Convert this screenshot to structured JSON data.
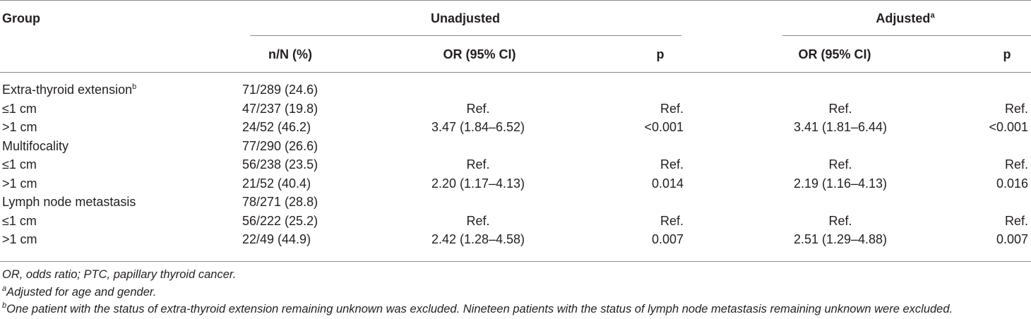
{
  "header": {
    "group": "Group",
    "unadjusted": "Unadjusted",
    "adjusted": "Adjusted",
    "adjusted_sup": "a",
    "n_pct": "n/N (%)",
    "or_ci_unadj": "OR (95% CI)",
    "p_unadj": "p",
    "or_ci_adj": "OR (95% CI)",
    "p_adj": "p"
  },
  "rows": [
    {
      "label": "Extra-thyroid extension",
      "sup": "b",
      "n": "71/289 (24.6)",
      "or1": "",
      "p1": "",
      "or2": "",
      "p2": ""
    },
    {
      "label": "≤1 cm",
      "sup": "",
      "n": "47/237 (19.8)",
      "or1": "Ref.",
      "p1": "Ref.",
      "or2": "Ref.",
      "p2": "Ref."
    },
    {
      "label": ">1 cm",
      "sup": "",
      "n": "24/52 (46.2)",
      "or1": "3.47 (1.84–6.52)",
      "p1": "<0.001",
      "or2": "3.41 (1.81–6.44)",
      "p2": "<0.001"
    },
    {
      "label": "Multifocality",
      "sup": "",
      "n": "77/290 (26.6)",
      "or1": "",
      "p1": "",
      "or2": "",
      "p2": ""
    },
    {
      "label": "≤1 cm",
      "sup": "",
      "n": "56/238 (23.5)",
      "or1": "Ref.",
      "p1": "Ref.",
      "or2": "Ref.",
      "p2": "Ref."
    },
    {
      "label": ">1 cm",
      "sup": "",
      "n": "21/52 (40.4)",
      "or1": "2.20 (1.17–4.13)",
      "p1": "0.014",
      "or2": "2.19 (1.16–4.13)",
      "p2": "0.016"
    },
    {
      "label": "Lymph node metastasis",
      "sup": "",
      "n": "78/271 (28.8)",
      "or1": "",
      "p1": "",
      "or2": "",
      "p2": ""
    },
    {
      "label": "≤1 cm",
      "sup": "",
      "n": "56/222 (25.2)",
      "or1": "Ref.",
      "p1": "Ref.",
      "or2": "Ref.",
      "p2": "Ref."
    },
    {
      "label": ">1 cm",
      "sup": "",
      "n": "22/49 (44.9)",
      "or1": "2.42 (1.28–4.58)",
      "p1": "0.007",
      "or2": "2.51 (1.29–4.88)",
      "p2": "0.007"
    }
  ],
  "footnotes": {
    "abbrev": "OR, odds ratio; PTC, papillary thyroid cancer.",
    "a_mark": "a",
    "a_text": "Adjusted for age and gender.",
    "b_mark": "b",
    "b_text": "One patient with the status of extra-thyroid extension remaining unknown was excluded. Nineteen patients with the status of lymph node metastasis remaining unknown were excluded."
  }
}
